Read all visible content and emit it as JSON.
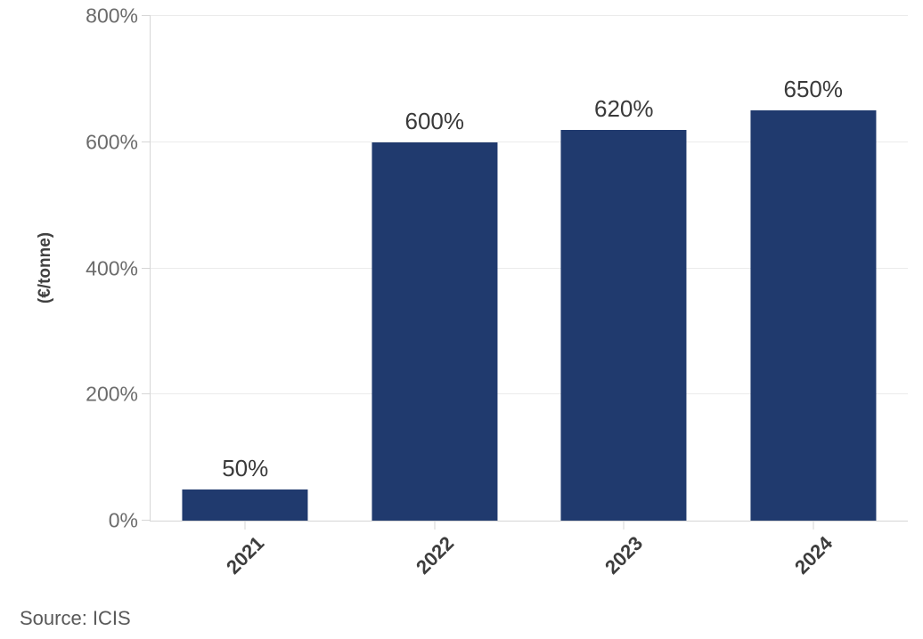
{
  "chart_data": {
    "type": "bar",
    "categories": [
      "2021",
      "2022",
      "2023",
      "2024"
    ],
    "values": [
      50,
      600,
      620,
      650
    ],
    "data_labels": [
      "50%",
      "600%",
      "620%",
      "650%"
    ],
    "title": "",
    "xlabel": "",
    "ylabel": "(€/tonne)",
    "ylim": [
      0,
      800
    ],
    "yticks": [
      0,
      200,
      400,
      600,
      800
    ],
    "ytick_labels": [
      "0%",
      "200%",
      "400%",
      "600%",
      "800%"
    ],
    "grid": true,
    "legend": false,
    "x_label_rotation_deg": -45,
    "bar_color": "#203a6e",
    "gridline_color": "#ebebeb",
    "axis_color": "#d6d6d6",
    "value_label_color": "#3a3a3a",
    "ytick_label_color": "#6b6b6b",
    "xtick_label_color": "#3d3d3d"
  },
  "source_note": "Source: ICIS"
}
